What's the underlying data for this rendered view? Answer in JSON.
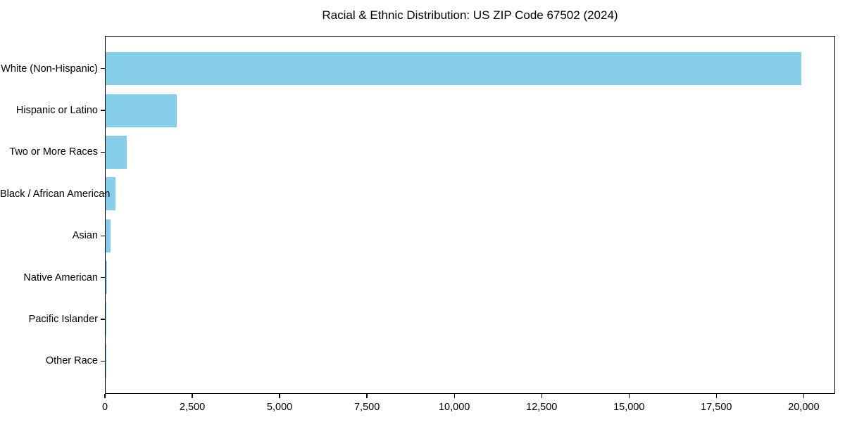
{
  "chart_data": {
    "type": "bar",
    "orientation": "horizontal",
    "title": "Racial & Ethnic Distribution: US ZIP Code 67502 (2024)",
    "categories": [
      "White (Non-Hispanic)",
      "Hispanic or Latino",
      "Two or More Races",
      "Black / African American",
      "Asian",
      "Native American",
      "Pacific Islander",
      "Other Race"
    ],
    "values": [
      19900,
      2020,
      590,
      280,
      140,
      30,
      20,
      5
    ],
    "bar_color": "#87ceeb",
    "xlabel": "",
    "ylabel": "",
    "xlim": [
      0,
      20900
    ],
    "x_ticks": [
      {
        "value": 0,
        "label": "0"
      },
      {
        "value": 2500,
        "label": "2,500"
      },
      {
        "value": 5000,
        "label": "5,000"
      },
      {
        "value": 7500,
        "label": "7,500"
      },
      {
        "value": 10000,
        "label": "10,000"
      },
      {
        "value": 12500,
        "label": "12,500"
      },
      {
        "value": 15000,
        "label": "15,000"
      },
      {
        "value": 17500,
        "label": "17,500"
      },
      {
        "value": 20000,
        "label": "20,000"
      }
    ],
    "grid": false,
    "legend": false,
    "frame": "full-box",
    "text_color": "#000000",
    "background_color": "#ffffff"
  }
}
